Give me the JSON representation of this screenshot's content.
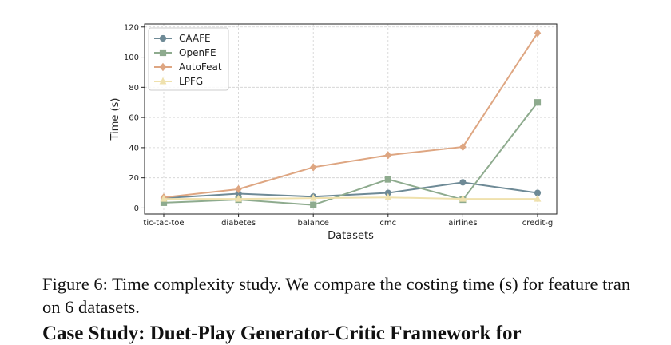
{
  "chart_data": {
    "type": "line",
    "title": "",
    "xlabel": "Datasets",
    "ylabel": "Time (s)",
    "categories": [
      "tic-tac-toe",
      "diabetes",
      "balance",
      "cmc",
      "airlines",
      "credit-g"
    ],
    "ylim": [
      -4,
      122
    ],
    "yticks": [
      0,
      20,
      40,
      60,
      80,
      100,
      120
    ],
    "grid": true,
    "legend_position": "top-left",
    "series": [
      {
        "name": "CAAFE",
        "values": [
          6.5,
          9.5,
          7.5,
          10,
          17,
          10
        ],
        "color": "#6e8a96",
        "marker": "circle"
      },
      {
        "name": "OpenFE",
        "values": [
          3.5,
          5.5,
          2,
          19,
          5.5,
          70
        ],
        "color": "#8eab8e",
        "marker": "square"
      },
      {
        "name": "AutoFeat",
        "values": [
          7,
          12.5,
          27,
          35,
          40.5,
          116
        ],
        "color": "#dea682",
        "marker": "diamond"
      },
      {
        "name": "LPFG",
        "values": [
          6,
          6,
          6.5,
          7,
          6,
          6
        ],
        "color": "#efe1ad",
        "marker": "triangle"
      }
    ]
  },
  "caption": {
    "text": "Figure 6: Time complexity study. We compare the costing time (s) for feature tran on 6 datasets."
  },
  "next_heading": {
    "text": "Case Study: Duet-Play Generator-Critic Framework for"
  }
}
